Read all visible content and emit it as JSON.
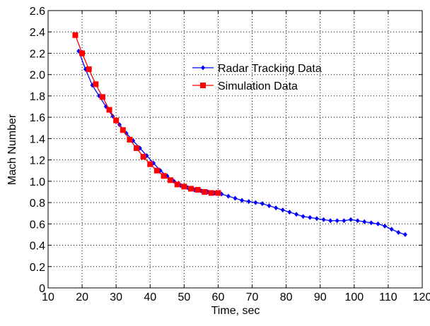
{
  "chart_data": {
    "type": "line",
    "x_label": "Time, sec",
    "y_label": "Mach Number",
    "xlim": [
      10,
      120
    ],
    "xticks": [
      10,
      20,
      30,
      40,
      50,
      60,
      70,
      80,
      90,
      100,
      110,
      120
    ],
    "ylim": [
      0,
      2.6
    ],
    "yticks": [
      0,
      0.2,
      0.4,
      0.6,
      0.8,
      {
        "value": 1,
        "label": "1.0"
      },
      1.2,
      1.4,
      1.6,
      1.8,
      {
        "value": 2,
        "label": "2.0"
      },
      2.2,
      2.4,
      2.6
    ],
    "grid": true,
    "legend": "upper center",
    "series": [
      {
        "name": "Radar Tracking Data",
        "color": "#0000ff",
        "marker": "diamond",
        "x": [
          19,
          21,
          23,
          25,
          27,
          29,
          31,
          33,
          35,
          37,
          39,
          41,
          43,
          45,
          47,
          49,
          51,
          53,
          55,
          57,
          59,
          61,
          63,
          65,
          67,
          69,
          71,
          73,
          75,
          77,
          79,
          81,
          83,
          85,
          87,
          89,
          91,
          93,
          95,
          97,
          99,
          101,
          103,
          105,
          107,
          109,
          111,
          113,
          115
        ],
        "values": [
          2.22,
          2.05,
          1.9,
          1.8,
          1.7,
          1.61,
          1.53,
          1.45,
          1.38,
          1.31,
          1.24,
          1.17,
          1.1,
          1.05,
          1.0,
          0.96,
          0.94,
          0.92,
          0.91,
          0.9,
          0.89,
          0.88,
          0.86,
          0.84,
          0.82,
          0.81,
          0.8,
          0.79,
          0.77,
          0.75,
          0.73,
          0.71,
          0.69,
          0.67,
          0.66,
          0.65,
          0.64,
          0.63,
          0.63,
          0.63,
          0.64,
          0.63,
          0.62,
          0.61,
          0.6,
          0.58,
          0.55,
          0.52,
          0.5
        ]
      },
      {
        "name": "Simulation Data",
        "color": "#ff0000",
        "marker": "square",
        "x": [
          18,
          20,
          22,
          24,
          26,
          28,
          30,
          32,
          34,
          36,
          38,
          40,
          42,
          44,
          46,
          48,
          50,
          52,
          54,
          56,
          58,
          60
        ],
        "values": [
          2.37,
          2.2,
          2.05,
          1.91,
          1.79,
          1.67,
          1.57,
          1.48,
          1.39,
          1.31,
          1.23,
          1.16,
          1.1,
          1.05,
          1.01,
          0.97,
          0.95,
          0.93,
          0.92,
          0.9,
          0.89,
          0.89
        ]
      }
    ]
  }
}
